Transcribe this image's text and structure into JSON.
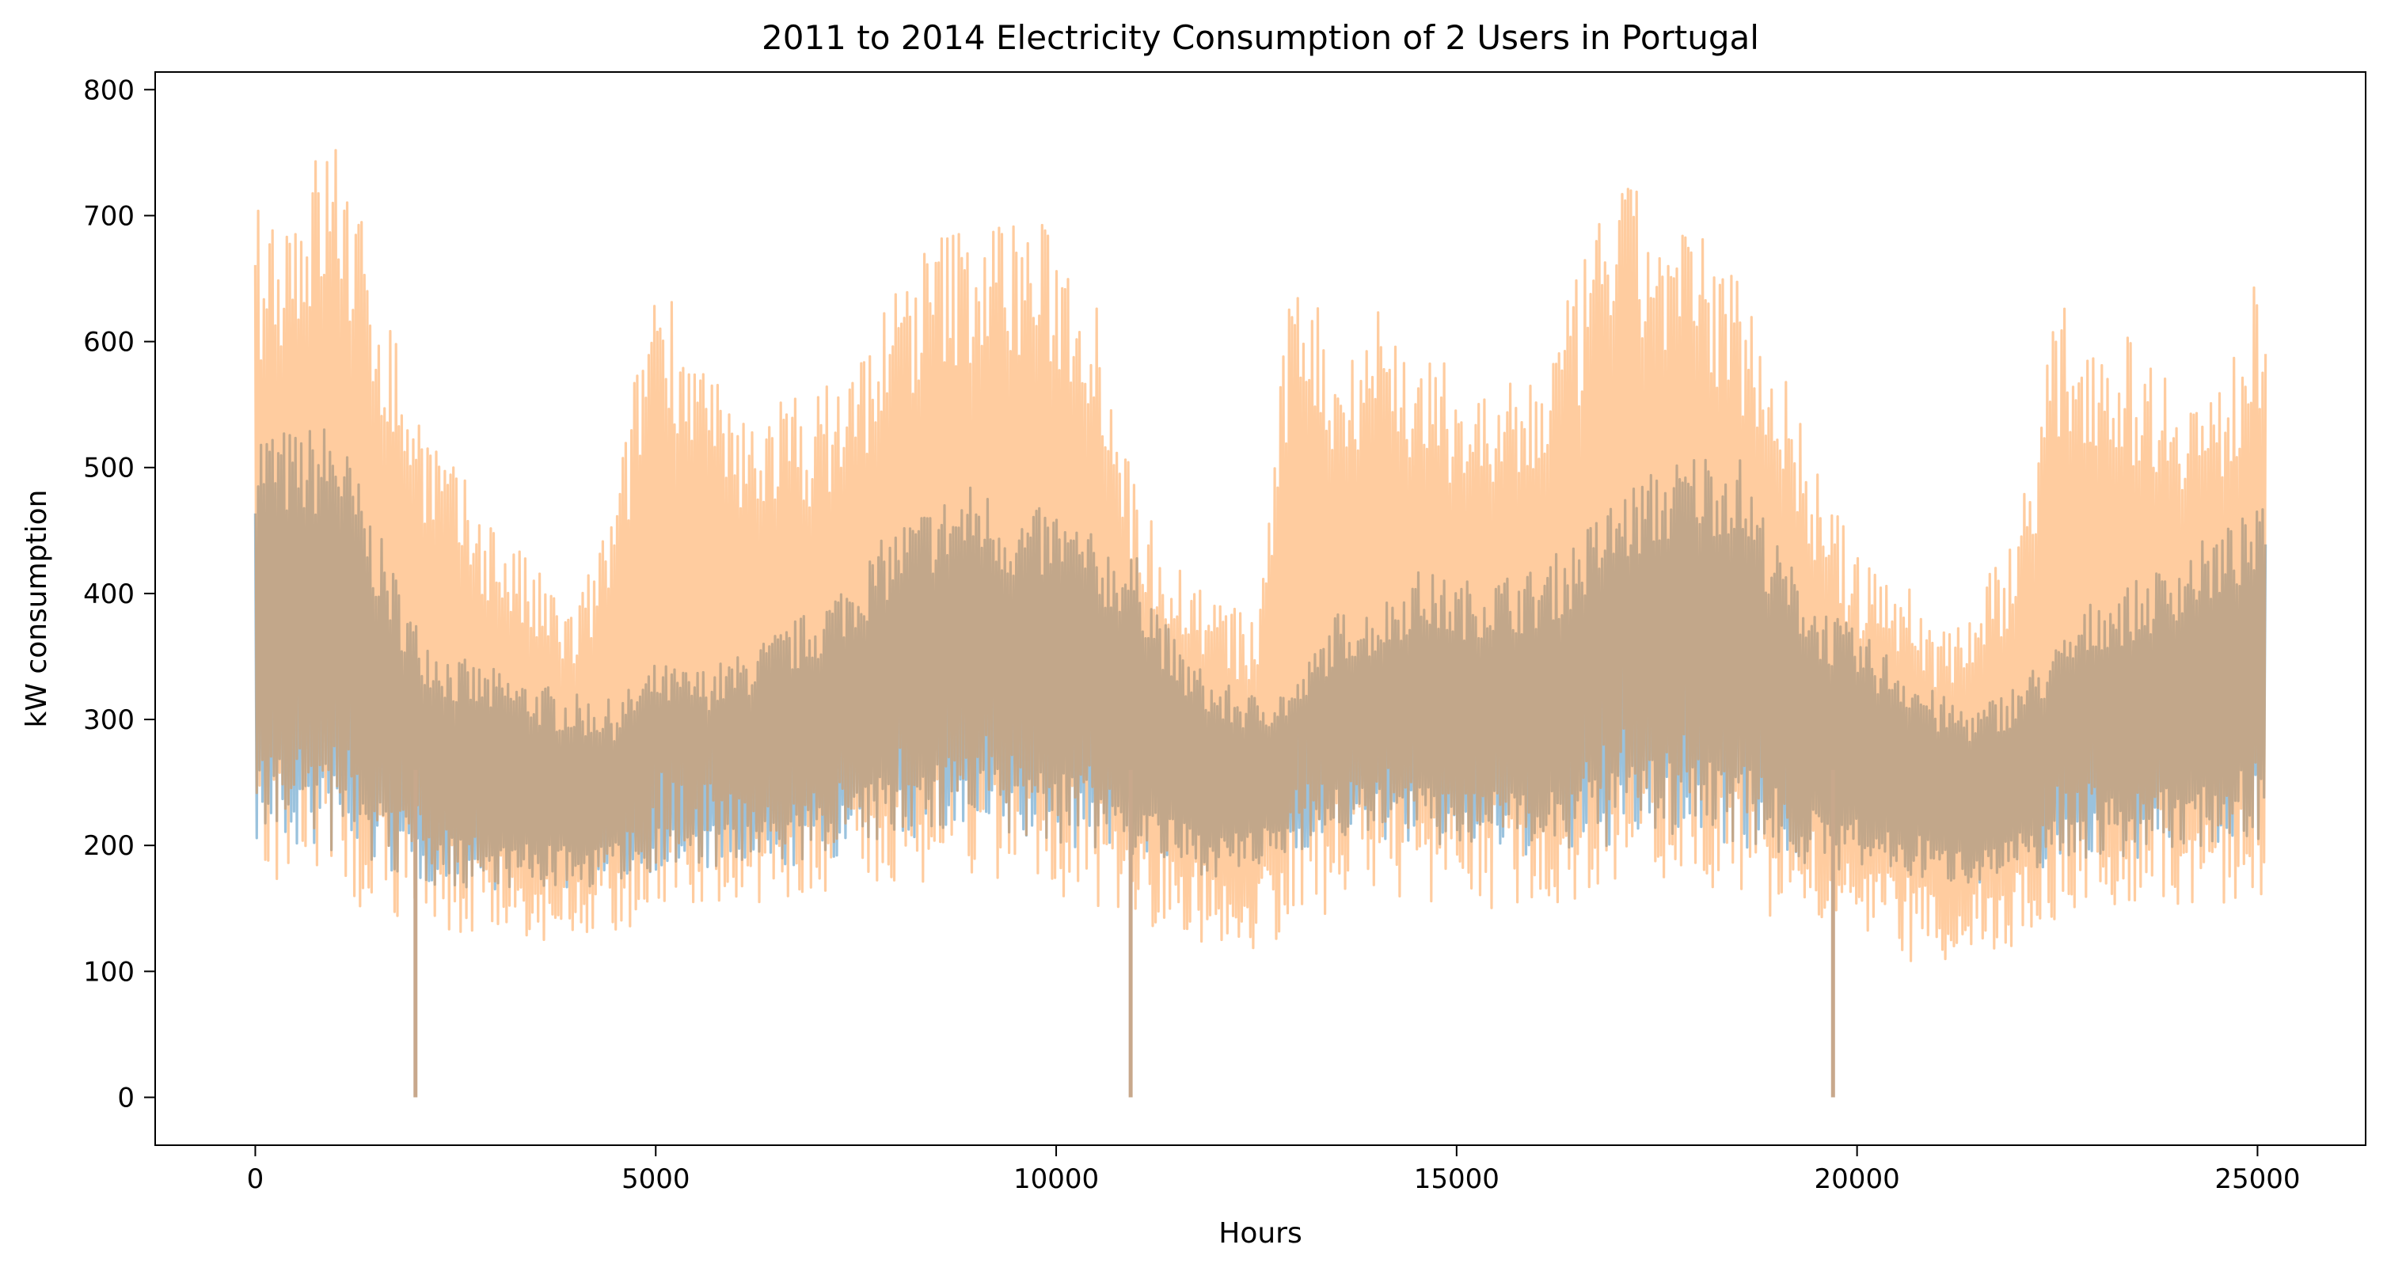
{
  "chart_data": {
    "type": "line",
    "title": "2011 to 2014 Electricity Consumption of 2 Users in Portugal",
    "xlabel": "Hours",
    "ylabel": "kW consumption",
    "xlim": [
      -1250,
      26350
    ],
    "ylim": [
      -38,
      814
    ],
    "xticks": [
      0,
      5000,
      10000,
      15000,
      20000,
      25000
    ],
    "xtick_labels": [
      "0",
      "5000",
      "10000",
      "15000",
      "20000",
      "25000"
    ],
    "yticks": [
      0,
      100,
      200,
      300,
      400,
      500,
      600,
      700,
      800
    ],
    "ytick_labels": [
      "0",
      "100",
      "200",
      "300",
      "400",
      "500",
      "600",
      "700",
      "800"
    ],
    "grid": false,
    "legend": "none",
    "series": [
      {
        "color": "#1f77b4",
        "opacity": 0.45,
        "x": [
          0,
          500,
          1000,
          1500,
          2000,
          2500,
          3000,
          3500,
          4000,
          4500,
          5000,
          5500,
          6000,
          6500,
          7000,
          7500,
          8000,
          8500,
          9000,
          9500,
          10000,
          10500,
          11000,
          11500,
          12000,
          12500,
          13000,
          13500,
          14000,
          14500,
          15000,
          15500,
          16000,
          16500,
          17000,
          17500,
          18000,
          18500,
          19000,
          19500,
          20000,
          20500,
          21000,
          21500,
          22000,
          22500,
          23000,
          23500,
          24000,
          24500,
          25100
        ],
        "upper": [
          540,
          530,
          540,
          455,
          380,
          350,
          340,
          330,
          320,
          315,
          345,
          340,
          350,
          370,
          390,
          420,
          455,
          475,
          490,
          465,
          470,
          445,
          430,
          360,
          330,
          320,
          330,
          385,
          390,
          420,
          410,
          415,
          420,
          445,
          480,
          500,
          515,
          515,
          440,
          395,
          370,
          350,
          320,
          310,
          330,
          360,
          400,
          410,
          430,
          450,
          470
        ],
        "lower": [
          200,
          195,
          190,
          180,
          170,
          165,
          165,
          165,
          165,
          170,
          180,
          180,
          180,
          180,
          185,
          195,
          205,
          205,
          205,
          200,
          200,
          195,
          190,
          180,
          175,
          180,
          195,
          205,
          205,
          200,
          195,
          195,
          190,
          190,
          200,
          205,
          205,
          200,
          190,
          180,
          180,
          175,
          170,
          170,
          175,
          185,
          190,
          190,
          195,
          200,
          205
        ]
      },
      {
        "color": "#ff7f0e",
        "opacity": 0.4,
        "x": [
          0,
          500,
          1000,
          1500,
          2000,
          2500,
          3000,
          3500,
          4000,
          4500,
          5000,
          5500,
          6000,
          6500,
          7000,
          7500,
          8000,
          8500,
          9000,
          9500,
          10000,
          10500,
          11000,
          11500,
          12000,
          12500,
          13000,
          13500,
          14000,
          14500,
          15000,
          15500,
          16000,
          16500,
          17000,
          17500,
          18000,
          18500,
          19000,
          19500,
          20000,
          20500,
          21000,
          21500,
          22000,
          22500,
          23000,
          23500,
          24000,
          24500,
          25100
        ],
        "upper": [
          705,
          730,
          775,
          660,
          560,
          500,
          460,
          420,
          390,
          480,
          675,
          600,
          540,
          560,
          560,
          590,
          650,
          690,
          700,
          705,
          690,
          650,
          480,
          430,
          400,
          380,
          690,
          590,
          640,
          590,
          580,
          560,
          580,
          650,
          740,
          700,
          690,
          660,
          600,
          500,
          430,
          420,
          380,
          400,
          460,
          630,
          620,
          600,
          580,
          560,
          670
        ],
        "lower": [
          150,
          150,
          150,
          145,
          140,
          130,
          125,
          120,
          120,
          125,
          150,
          155,
          155,
          150,
          150,
          160,
          170,
          170,
          170,
          165,
          160,
          150,
          140,
          125,
          120,
          115,
          130,
          150,
          160,
          155,
          150,
          150,
          145,
          150,
          170,
          175,
          170,
          160,
          140,
          125,
          115,
          110,
          105,
          110,
          120,
          140,
          150,
          150,
          150,
          150,
          160
        ]
      }
    ],
    "drops": [
      {
        "x": 2000,
        "from": 260,
        "to": 0
      },
      {
        "x": 10930,
        "from": 260,
        "to": 0
      },
      {
        "x": 19700,
        "from": 260,
        "to": 0
      }
    ]
  }
}
